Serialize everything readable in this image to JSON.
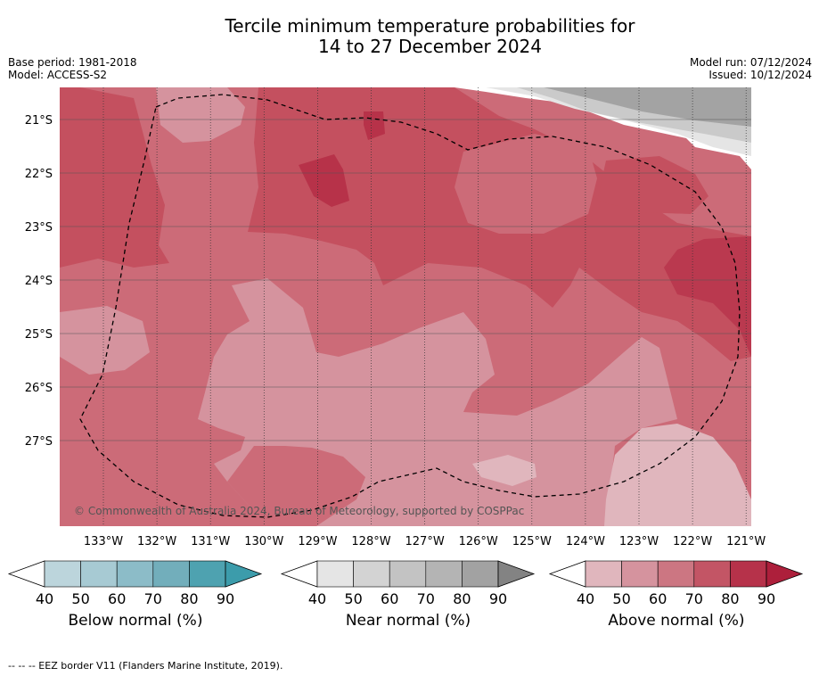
{
  "title_line1": "Tercile minimum temperature probabilities for",
  "title_line2": "14 to 27 December 2024",
  "base_period": "Base period: 1981-2018",
  "model": "Model: ACCESS-S2",
  "model_run": "Model run: 07/12/2024",
  "issued": "Issued: 10/12/2024",
  "copyright": "© Commonwealth of Australia 2024, Bureau of Meteorology, supported by COSPPac",
  "lat_labels": [
    "21°S",
    "22°S",
    "23°S",
    "24°S",
    "25°S",
    "26°S",
    "27°S"
  ],
  "lon_labels": [
    "133°W",
    "132°W",
    "131°W",
    "130°W",
    "129°W",
    "128°W",
    "127°W",
    "126°W",
    "125°W",
    "124°W",
    "123°W",
    "122°W",
    "121°W"
  ],
  "colorbars": [
    {
      "name": "below",
      "label": "Below normal (%)",
      "ticks": [
        "40",
        "50",
        "60",
        "70",
        "80",
        "90"
      ],
      "colors": [
        "#bcd5dc",
        "#a7cad3",
        "#8cbcc8",
        "#72aebb",
        "#4ea2b0"
      ],
      "extend_color": "#3c9cab"
    },
    {
      "name": "near",
      "label": "Near normal (%)",
      "ticks": [
        "40",
        "50",
        "60",
        "70",
        "80",
        "90"
      ],
      "colors": [
        "#e5e5e5",
        "#d3d3d3",
        "#c3c3c3",
        "#b4b4b4",
        "#a2a2a2"
      ],
      "extend_color": "#838383"
    },
    {
      "name": "above",
      "label": "Above normal (%)",
      "ticks": [
        "40",
        "50",
        "60",
        "70",
        "80",
        "90"
      ],
      "colors": [
        "#e0b6bd",
        "#d5939e",
        "#cc7682",
        "#c35565",
        "#b6324a"
      ],
      "extend_color": "#ad1f3b"
    }
  ],
  "footer": "--  --  -- EEZ border V11 (Flanders Marine Institute, 2019).",
  "colors": {
    "above_40": "#e0b6bd",
    "above_50": "#d5939e",
    "above_60": "#cc6b78",
    "above_70": "#c4505f",
    "above_80": "#b73249",
    "near_40": "#e5e5e5",
    "near_60": "#cacaca",
    "near_80": "#a3a3a3"
  }
}
